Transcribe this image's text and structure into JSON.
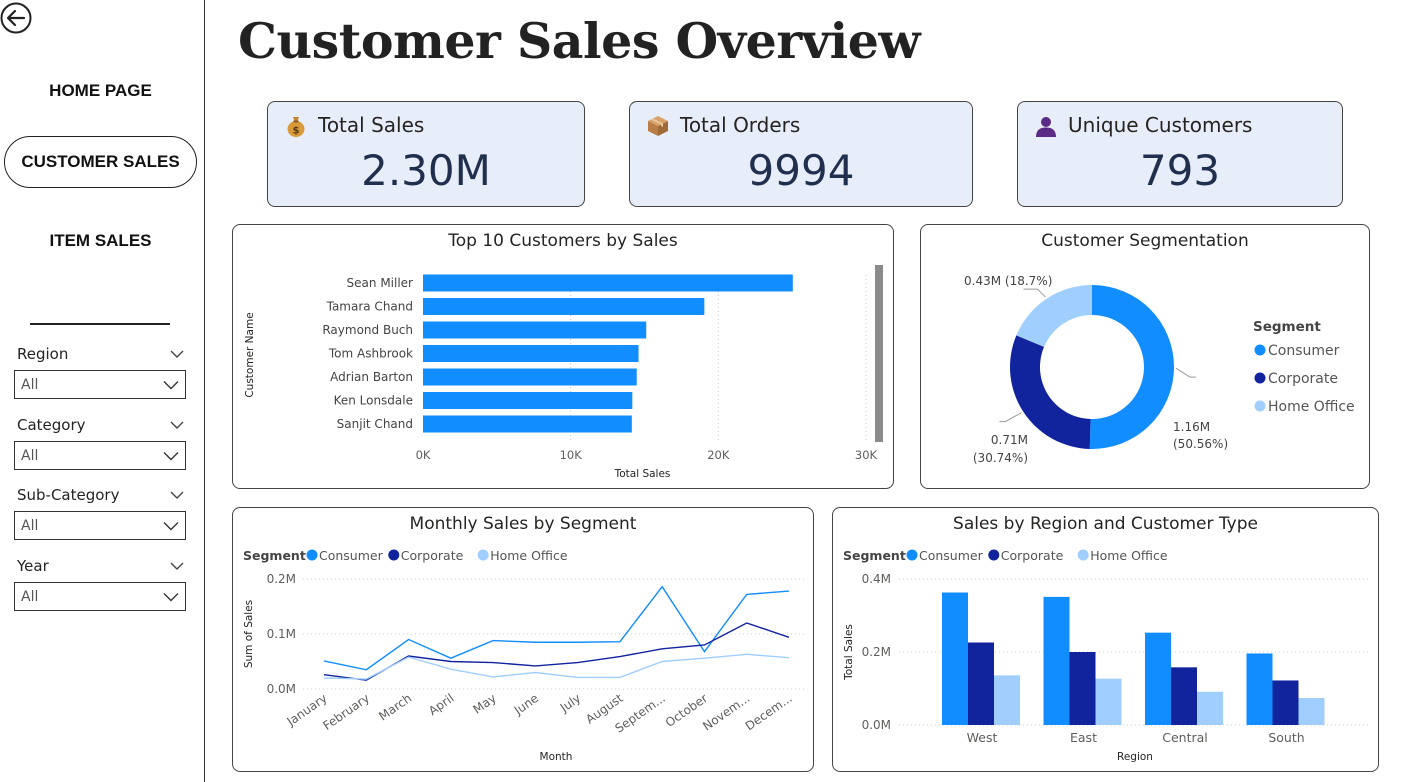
{
  "sidebar": {
    "nav": [
      {
        "label": "HOME PAGE",
        "active": false
      },
      {
        "label": "CUSTOMER SALES",
        "active": true
      },
      {
        "label": "ITEM SALES",
        "active": false
      }
    ],
    "slicers": [
      {
        "label": "Region",
        "value": "All"
      },
      {
        "label": "Category",
        "value": "All"
      },
      {
        "label": "Sub-Category",
        "value": "All"
      },
      {
        "label": "Year",
        "value": "All"
      }
    ]
  },
  "page_title": "Customer Sales Overview",
  "kpis": [
    {
      "label": "Total Sales",
      "value": "2.30M",
      "icon": "money-bag-icon"
    },
    {
      "label": "Total Orders",
      "value": "9994",
      "icon": "package-icon"
    },
    {
      "label": "Unique Customers",
      "value": "793",
      "icon": "person-icon"
    }
  ],
  "colors": {
    "consumer": "#118DFF",
    "corporate": "#12239E",
    "home_office": "#A0CFFF"
  },
  "chart_data": [
    {
      "id": "top_customers",
      "type": "bar",
      "orientation": "horizontal",
      "title": "Top 10 Customers by Sales",
      "xlabel": "Total Sales",
      "ylabel": "Customer Name",
      "categories": [
        "Sean Miller",
        "Tamara Chand",
        "Raymond Buch",
        "Tom Ashbrook",
        "Adrian Barton",
        "Ken Lonsdale",
        "Sanjit Chand"
      ],
      "values": [
        25043,
        19052,
        15117,
        14596,
        14474,
        14175,
        14142
      ],
      "xlim": [
        0,
        30000
      ],
      "xticks": [
        "0K",
        "10K",
        "20K",
        "30K"
      ]
    },
    {
      "id": "segmentation",
      "type": "pie",
      "title": "Customer Segmentation",
      "legend_title": "Segment",
      "slices": [
        {
          "name": "Consumer",
          "value": 1.16,
          "label_value": "1.16M",
          "label_pct": "(50.56%)"
        },
        {
          "name": "Corporate",
          "value": 0.71,
          "label_value": "0.71M",
          "label_pct": "(30.74%)"
        },
        {
          "name": "Home Office",
          "value": 0.43,
          "label_value": "0.43M (18.7%)",
          "label_pct": ""
        }
      ]
    },
    {
      "id": "monthly",
      "type": "line",
      "title": "Monthly Sales by Segment",
      "legend_title": "Segment",
      "xlabel": "Month",
      "ylabel": "Sum of Sales",
      "categories": [
        "January",
        "February",
        "March",
        "April",
        "May",
        "June",
        "July",
        "August",
        "Septem...",
        "October",
        "Novem...",
        "Decem..."
      ],
      "ylim": [
        0,
        0.2
      ],
      "yticks": [
        "0.0M",
        "0.1M",
        "0.2M"
      ],
      "series": [
        {
          "name": "Consumer",
          "values": [
            0.051,
            0.035,
            0.09,
            0.056,
            0.088,
            0.085,
            0.085,
            0.086,
            0.186,
            0.068,
            0.172,
            0.178
          ]
        },
        {
          "name": "Corporate",
          "values": [
            0.026,
            0.016,
            0.06,
            0.05,
            0.048,
            0.042,
            0.048,
            0.059,
            0.073,
            0.08,
            0.12,
            0.094
          ]
        },
        {
          "name": "Home Office",
          "values": [
            0.02,
            0.018,
            0.058,
            0.036,
            0.022,
            0.03,
            0.021,
            0.021,
            0.05,
            0.056,
            0.063,
            0.057
          ]
        }
      ]
    },
    {
      "id": "region",
      "type": "bar",
      "title": "Sales by Region and Customer Type",
      "legend_title": "Segment",
      "xlabel": "Region",
      "ylabel": "Total Sales",
      "categories": [
        "West",
        "East",
        "Central",
        "South"
      ],
      "ylim": [
        0,
        0.4
      ],
      "yticks": [
        "0.0M",
        "0.2M",
        "0.4M"
      ],
      "series": [
        {
          "name": "Consumer",
          "values": [
            0.363,
            0.351,
            0.253,
            0.196
          ]
        },
        {
          "name": "Corporate",
          "values": [
            0.226,
            0.2,
            0.158,
            0.122
          ]
        },
        {
          "name": "Home Office",
          "values": [
            0.136,
            0.127,
            0.091,
            0.074
          ]
        }
      ]
    }
  ]
}
